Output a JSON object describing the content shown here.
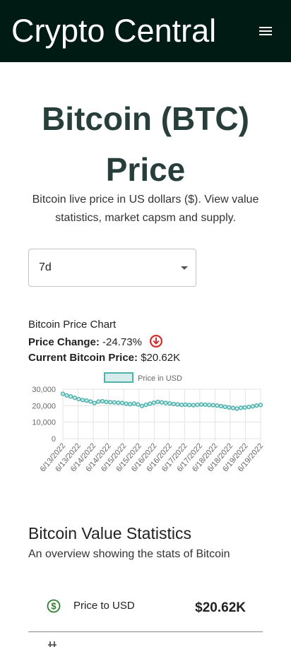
{
  "header": {
    "title": "Crypto Central",
    "menu_icon": "menu-icon"
  },
  "hero": {
    "title_line1": "Bitcoin (BTC)",
    "title_line2": "Price",
    "subtitle": "Bitcoin live price in US dollars ($). View value statistics, market capsm and supply."
  },
  "period_select": {
    "value": "7d"
  },
  "chart_info": {
    "heading": "Bitcoin Price Chart",
    "change_label": "Price Change:",
    "change_value": "-24.73%",
    "current_label": "Current Bitcoin Price:",
    "current_value": "$20.62K"
  },
  "chart_data": {
    "type": "line",
    "legend": "Price in USD",
    "ylim": [
      0,
      30000
    ],
    "yticks": [
      "30,000",
      "20,000",
      "10,000",
      "0"
    ],
    "xticks": [
      "6/13/2022",
      "6/13/2022",
      "6/14/2022",
      "6/14/2022",
      "6/15/2022",
      "6/15/2022",
      "6/16/2022",
      "6/16/2022",
      "6/17/2022",
      "6/17/2022",
      "6/18/2022",
      "6/18/2022",
      "6/19/2022",
      "6/19/2022"
    ],
    "values": [
      27200,
      26200,
      25600,
      24800,
      24000,
      23400,
      23100,
      22500,
      21600,
      22500,
      22700,
      22300,
      22100,
      22000,
      21800,
      21700,
      21200,
      20900,
      21300,
      20700,
      19800,
      20500,
      21200,
      21800,
      22300,
      22000,
      21700,
      21400,
      21000,
      20800,
      20500,
      20600,
      20400,
      20300,
      20500,
      20700,
      20600,
      20400,
      20300,
      20100,
      19700,
      19300,
      18900,
      18600,
      18200,
      18700,
      18900,
      19200,
      19600,
      20100,
      20400
    ],
    "colors": {
      "line": "#4fb3ad",
      "fill": "#d7edec",
      "grid": "#e3e3e3"
    }
  },
  "stats": {
    "title": "Bitcoin Value Statistics",
    "subtitle": "An overview showing the stats of Bitcoin",
    "rows": [
      {
        "icon": "dollar-circle-icon",
        "label": "Price to USD",
        "value": "$20.62K"
      }
    ]
  }
}
